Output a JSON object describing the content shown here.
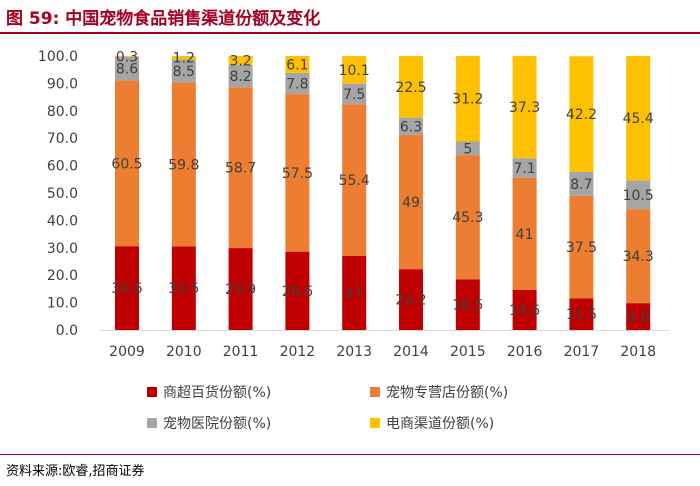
{
  "header": {
    "title": "图 59:  中国宠物食品销售渠道份额及变化"
  },
  "footer": {
    "source": "资料来源:欧睿,招商证券"
  },
  "colors": {
    "title": "#a50021",
    "series": [
      "#c00000",
      "#ed7d31",
      "#a5a5a5",
      "#ffc000"
    ]
  },
  "chart_data": {
    "type": "bar",
    "stacked": true,
    "categories": [
      "2009",
      "2010",
      "2011",
      "2012",
      "2013",
      "2014",
      "2015",
      "2016",
      "2017",
      "2018"
    ],
    "series": [
      {
        "name": "商超百货份额(%)",
        "values": [
          30.6,
          30.5,
          29.9,
          28.6,
          27,
          22.2,
          18.5,
          14.6,
          11.5,
          9.8
        ]
      },
      {
        "name": "宠物专营店份额(%)",
        "values": [
          60.5,
          59.8,
          58.7,
          57.5,
          55.4,
          49,
          45.3,
          41,
          37.5,
          34.3
        ]
      },
      {
        "name": "宠物医院份额(%)",
        "values": [
          8.6,
          8.5,
          8.2,
          7.8,
          7.5,
          6.3,
          5,
          7.1,
          8.7,
          10.5
        ]
      },
      {
        "name": "电商渠道份额(%)",
        "values": [
          0.3,
          1.2,
          3.2,
          6.1,
          10.1,
          22.5,
          31.2,
          37.3,
          42.2,
          45.4
        ]
      }
    ],
    "yticks": [
      "0.0",
      "10.0",
      "20.0",
      "30.0",
      "40.0",
      "50.0",
      "60.0",
      "70.0",
      "80.0",
      "90.0",
      "100.0"
    ],
    "ylim": [
      0,
      100
    ],
    "grid": false,
    "legend_position": "bottom"
  }
}
